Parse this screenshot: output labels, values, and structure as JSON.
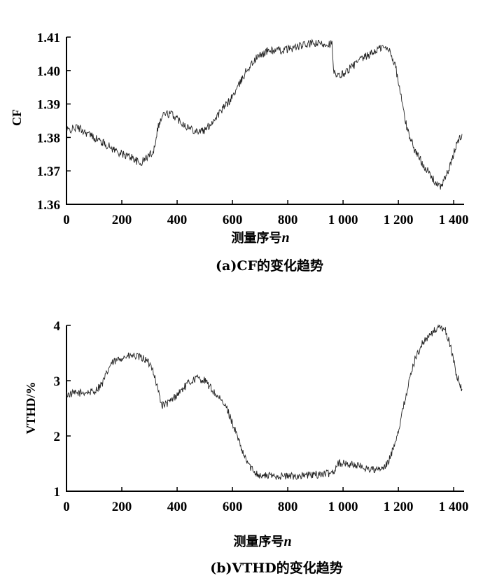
{
  "chart_data": [
    {
      "type": "line",
      "panel": "a",
      "ylabel": "CF",
      "xlabel": "测量序号",
      "xlabel_var": "n",
      "caption": "(a)CF的变化趋势",
      "xlim": [
        0,
        1430
      ],
      "ylim": [
        1.36,
        1.41
      ],
      "xticks": [
        "0",
        "200",
        "400",
        "600",
        "800",
        "1 000",
        "1 200",
        "1 400"
      ],
      "xtick_values": [
        0,
        200,
        400,
        600,
        800,
        1000,
        1200,
        1400
      ],
      "yticks": [
        "1.36",
        "1.37",
        "1.38",
        "1.39",
        "1.40",
        "1.41"
      ],
      "ytick_values": [
        1.36,
        1.37,
        1.38,
        1.39,
        1.4,
        1.41
      ],
      "grid": false,
      "series": [
        {
          "noise": 0.0012,
          "points": [
            [
              0,
              1.382
            ],
            [
              40,
              1.383
            ],
            [
              80,
              1.381
            ],
            [
              120,
              1.379
            ],
            [
              160,
              1.377
            ],
            [
              200,
              1.375
            ],
            [
              240,
              1.374
            ],
            [
              265,
              1.372
            ],
            [
              290,
              1.374
            ],
            [
              315,
              1.376
            ],
            [
              330,
              1.383
            ],
            [
              350,
              1.387
            ],
            [
              380,
              1.387
            ],
            [
              410,
              1.385
            ],
            [
              440,
              1.383
            ],
            [
              470,
              1.382
            ],
            [
              500,
              1.382
            ],
            [
              530,
              1.385
            ],
            [
              560,
              1.388
            ],
            [
              590,
              1.391
            ],
            [
              620,
              1.395
            ],
            [
              650,
              1.4
            ],
            [
              690,
              1.404
            ],
            [
              730,
              1.406
            ],
            [
              780,
              1.406
            ],
            [
              830,
              1.407
            ],
            [
              880,
              1.408
            ],
            [
              920,
              1.408
            ],
            [
              960,
              1.408
            ],
            [
              965,
              1.4
            ],
            [
              975,
              1.398
            ],
            [
              1000,
              1.399
            ],
            [
              1030,
              1.401
            ],
            [
              1060,
              1.403
            ],
            [
              1100,
              1.405
            ],
            [
              1140,
              1.407
            ],
            [
              1170,
              1.406
            ],
            [
              1190,
              1.401
            ],
            [
              1210,
              1.392
            ],
            [
              1230,
              1.383
            ],
            [
              1260,
              1.376
            ],
            [
              1290,
              1.372
            ],
            [
              1320,
              1.368
            ],
            [
              1350,
              1.365
            ],
            [
              1370,
              1.368
            ],
            [
              1390,
              1.372
            ],
            [
              1410,
              1.378
            ],
            [
              1430,
              1.381
            ]
          ]
        }
      ]
    },
    {
      "type": "line",
      "panel": "b",
      "ylabel": "VTHD/%",
      "xlabel": "测量序号",
      "xlabel_var": "n",
      "caption": "(b)VTHD的变化趋势",
      "xlim": [
        0,
        1430
      ],
      "ylim": [
        1,
        4
      ],
      "xticks": [
        "0",
        "200",
        "400",
        "600",
        "800",
        "1 000",
        "1 200",
        "1 400"
      ],
      "xtick_values": [
        0,
        200,
        400,
        600,
        800,
        1000,
        1200,
        1400
      ],
      "yticks": [
        "1",
        "2",
        "3",
        "4"
      ],
      "ytick_values": [
        1,
        2,
        3,
        4
      ],
      "grid": false,
      "series": [
        {
          "noise": 0.07,
          "points": [
            [
              0,
              2.75
            ],
            [
              50,
              2.78
            ],
            [
              100,
              2.8
            ],
            [
              130,
              2.95
            ],
            [
              160,
              3.3
            ],
            [
              200,
              3.42
            ],
            [
              240,
              3.45
            ],
            [
              280,
              3.4
            ],
            [
              310,
              3.25
            ],
            [
              330,
              2.85
            ],
            [
              345,
              2.55
            ],
            [
              370,
              2.6
            ],
            [
              400,
              2.75
            ],
            [
              440,
              2.95
            ],
            [
              470,
              3.05
            ],
            [
              500,
              3.0
            ],
            [
              540,
              2.75
            ],
            [
              580,
              2.5
            ],
            [
              610,
              2.1
            ],
            [
              640,
              1.65
            ],
            [
              670,
              1.4
            ],
            [
              700,
              1.28
            ],
            [
              750,
              1.28
            ],
            [
              800,
              1.27
            ],
            [
              850,
              1.28
            ],
            [
              900,
              1.3
            ],
            [
              950,
              1.32
            ],
            [
              970,
              1.38
            ],
            [
              980,
              1.52
            ],
            [
              1000,
              1.5
            ],
            [
              1040,
              1.48
            ],
            [
              1080,
              1.42
            ],
            [
              1120,
              1.38
            ],
            [
              1150,
              1.42
            ],
            [
              1170,
              1.6
            ],
            [
              1200,
              2.1
            ],
            [
              1230,
              2.8
            ],
            [
              1260,
              3.4
            ],
            [
              1290,
              3.7
            ],
            [
              1320,
              3.85
            ],
            [
              1350,
              4.0
            ],
            [
              1370,
              3.9
            ],
            [
              1390,
              3.6
            ],
            [
              1410,
              3.1
            ],
            [
              1430,
              2.85
            ]
          ]
        }
      ]
    }
  ]
}
